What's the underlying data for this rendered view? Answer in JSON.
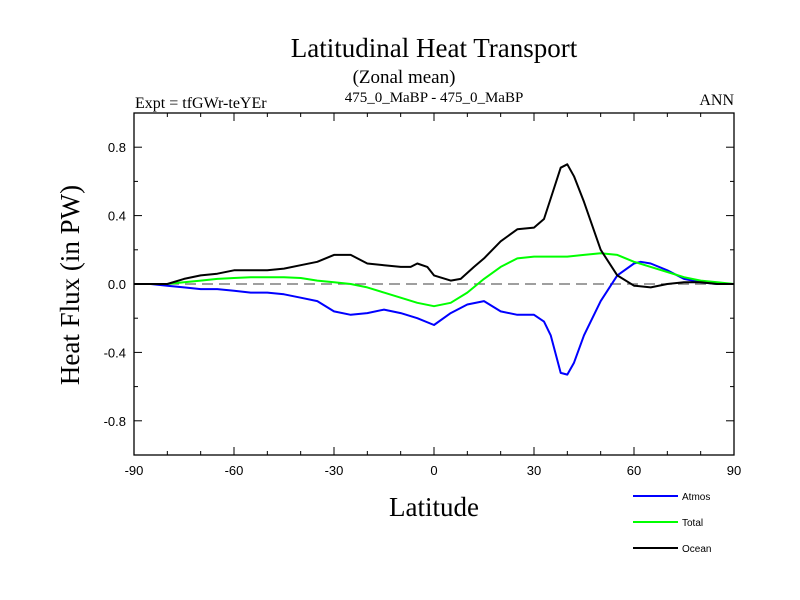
{
  "chart_data": {
    "type": "line",
    "title": "Latitudinal Heat Transport",
    "subtitle": "(Zonal mean)",
    "left_label": "Expt = tfGWr-teYEr",
    "center_label": "475_0_MaBP - 475_0_MaBP",
    "right_label": "ANN",
    "xlabel": "Latitude",
    "ylabel": "Heat Flux (in PW)",
    "xlim": [
      -90,
      90
    ],
    "ylim": [
      -1.0,
      1.0
    ],
    "xticks": [
      -90,
      -60,
      -30,
      0,
      30,
      60,
      90
    ],
    "xtick_labels": [
      "-90",
      "-60",
      "-30",
      "0",
      "30",
      "60",
      "90"
    ],
    "yticks": [
      -0.8,
      -0.4,
      0.0,
      0.4,
      0.8
    ],
    "ytick_labels": [
      "-0.8",
      "-0.4",
      "0.0",
      "0.4",
      "0.8"
    ],
    "zero_line": true,
    "series": [
      {
        "name": "Atmos",
        "color": "#0000ff",
        "x": [
          -90,
          -85,
          -80,
          -75,
          -70,
          -65,
          -60,
          -55,
          -50,
          -45,
          -40,
          -35,
          -30,
          -25,
          -20,
          -15,
          -10,
          -5,
          0,
          5,
          10,
          15,
          20,
          25,
          30,
          33,
          35,
          38,
          40,
          42,
          45,
          50,
          55,
          60,
          62,
          65,
          70,
          75,
          80,
          85,
          90
        ],
        "y": [
          0.0,
          0.0,
          -0.01,
          -0.02,
          -0.03,
          -0.03,
          -0.04,
          -0.05,
          -0.05,
          -0.06,
          -0.08,
          -0.1,
          -0.16,
          -0.18,
          -0.17,
          -0.15,
          -0.17,
          -0.2,
          -0.24,
          -0.17,
          -0.12,
          -0.1,
          -0.16,
          -0.18,
          -0.18,
          -0.22,
          -0.3,
          -0.52,
          -0.53,
          -0.46,
          -0.3,
          -0.1,
          0.05,
          0.12,
          0.13,
          0.12,
          0.08,
          0.03,
          0.01,
          0.0,
          0.0
        ]
      },
      {
        "name": "Total",
        "color": "#00ff00",
        "x": [
          -90,
          -85,
          -80,
          -75,
          -70,
          -65,
          -60,
          -55,
          -50,
          -45,
          -40,
          -35,
          -30,
          -25,
          -20,
          -15,
          -10,
          -5,
          0,
          5,
          10,
          15,
          20,
          25,
          30,
          35,
          40,
          45,
          50,
          55,
          60,
          65,
          70,
          75,
          80,
          85,
          90
        ],
        "y": [
          0.0,
          0.0,
          0.0,
          0.01,
          0.02,
          0.03,
          0.035,
          0.04,
          0.04,
          0.04,
          0.035,
          0.02,
          0.01,
          0.0,
          -0.02,
          -0.05,
          -0.08,
          -0.11,
          -0.13,
          -0.11,
          -0.05,
          0.03,
          0.1,
          0.15,
          0.16,
          0.16,
          0.16,
          0.17,
          0.18,
          0.17,
          0.13,
          0.1,
          0.07,
          0.04,
          0.02,
          0.01,
          0.0
        ]
      },
      {
        "name": "Ocean",
        "color": "#000000",
        "x": [
          -90,
          -85,
          -80,
          -75,
          -70,
          -65,
          -60,
          -55,
          -50,
          -45,
          -40,
          -35,
          -30,
          -25,
          -20,
          -15,
          -10,
          -7,
          -5,
          -2,
          0,
          5,
          8,
          12,
          15,
          20,
          25,
          30,
          33,
          35,
          38,
          40,
          42,
          45,
          50,
          55,
          60,
          65,
          70,
          75,
          80,
          85,
          90
        ],
        "y": [
          0.0,
          0.0,
          0.0,
          0.03,
          0.05,
          0.06,
          0.08,
          0.08,
          0.08,
          0.09,
          0.11,
          0.13,
          0.17,
          0.17,
          0.12,
          0.11,
          0.1,
          0.1,
          0.12,
          0.1,
          0.05,
          0.02,
          0.03,
          0.1,
          0.15,
          0.25,
          0.32,
          0.33,
          0.38,
          0.5,
          0.68,
          0.7,
          0.63,
          0.48,
          0.2,
          0.05,
          -0.01,
          -0.02,
          0.0,
          0.01,
          0.01,
          0.0,
          0.0
        ]
      }
    ],
    "legend": {
      "position": "bottom-right",
      "entries": [
        "Atmos",
        "Total",
        "Ocean"
      ]
    }
  }
}
